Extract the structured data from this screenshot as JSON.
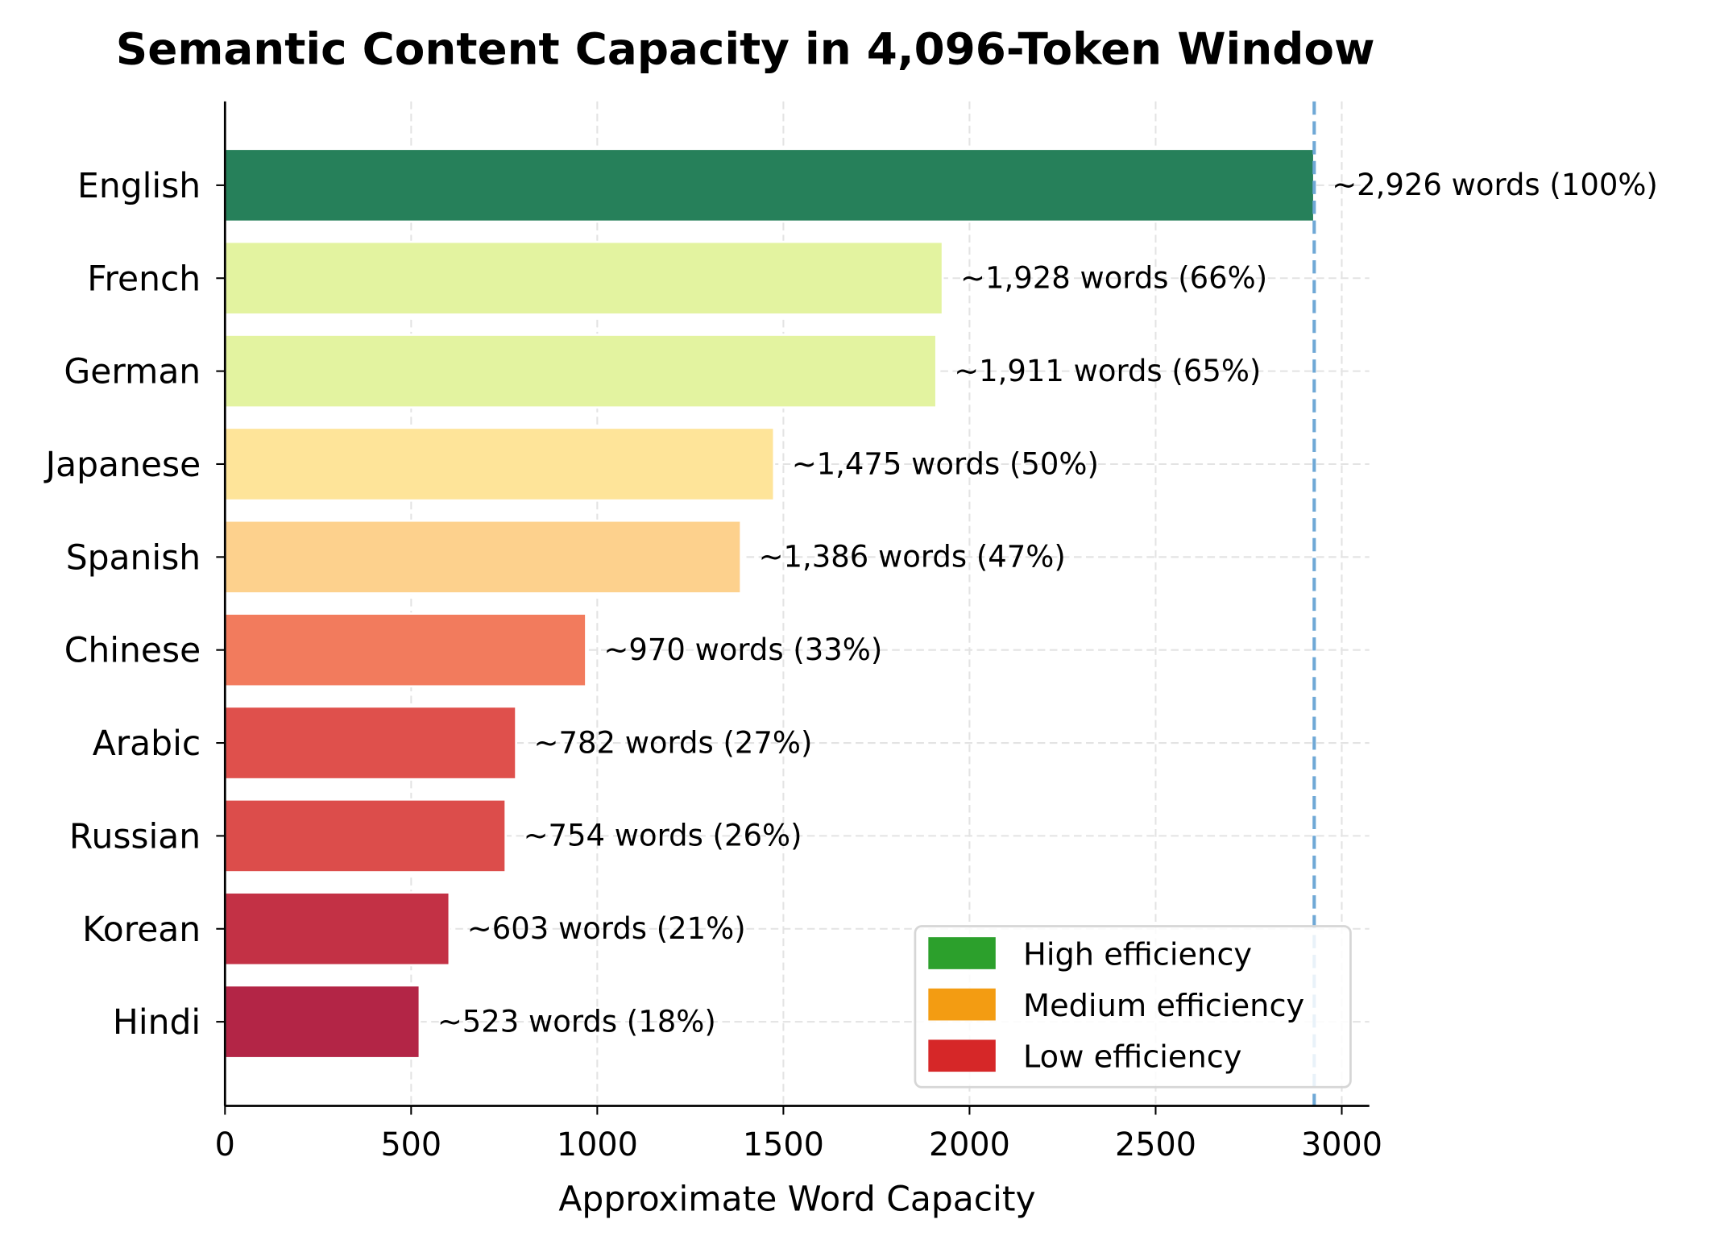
{
  "chart_data": {
    "type": "bar",
    "orientation": "horizontal",
    "title": "Semantic Content Capacity in 4,096-Token Window",
    "xlabel": "Approximate Word Capacity",
    "ylabel": "",
    "xlim": [
      0,
      3070
    ],
    "xticks": [
      0,
      500,
      1000,
      1500,
      2000,
      2500,
      3000
    ],
    "grid": true,
    "categories": [
      "English",
      "French",
      "German",
      "Japanese",
      "Spanish",
      "Chinese",
      "Arabic",
      "Russian",
      "Korean",
      "Hindi"
    ],
    "values": [
      2926,
      1928,
      1911,
      1475,
      1386,
      970,
      782,
      754,
      603,
      523
    ],
    "data_labels": [
      "~2,926 words (100%)",
      "~1,928 words (66%)",
      "~1,911 words (65%)",
      "~1,475 words (50%)",
      "~1,386 words (47%)",
      "~970 words (33%)",
      "~782 words (27%)",
      "~754 words (26%)",
      "~603 words (21%)",
      "~523 words (18%)"
    ],
    "colors": [
      "#26805a",
      "#e3f3a0",
      "#e3f3a0",
      "#fee499",
      "#fdd18d",
      "#f27b5d",
      "#df504c",
      "#dc4d4b",
      "#c33145",
      "#b32546"
    ],
    "reference_line": {
      "x": 2926,
      "color": "#6fa8d6",
      "style": "dashed"
    },
    "legend": {
      "placement": "lower-right",
      "entries": [
        {
          "label": "High efficiency",
          "color": "#2ca02c"
        },
        {
          "label": "Medium efficiency",
          "color": "#f39c12"
        },
        {
          "label": "Low efficiency",
          "color": "#d62728"
        }
      ]
    }
  }
}
